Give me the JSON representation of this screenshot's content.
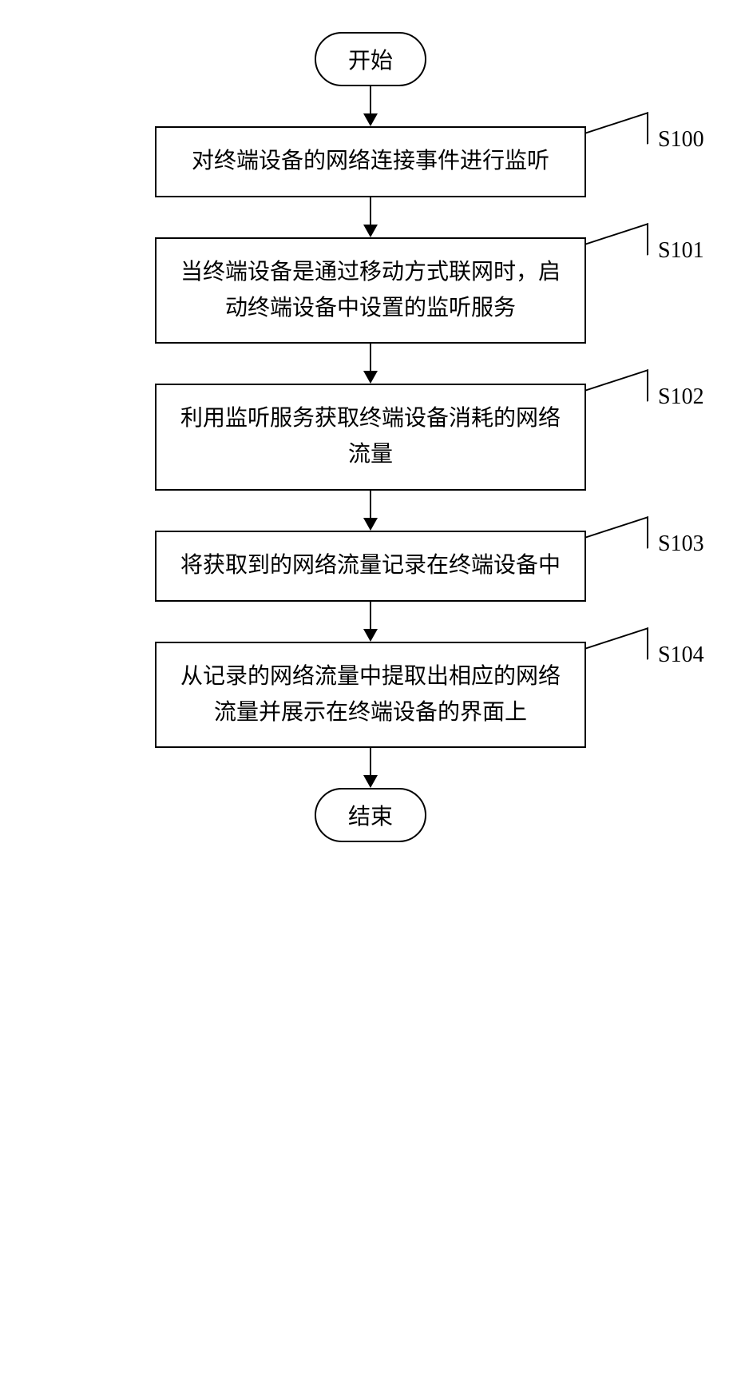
{
  "flowchart": {
    "type": "flowchart",
    "background_color": "#ffffff",
    "border_color": "#000000",
    "border_width": 2,
    "text_color": "#000000",
    "font_family": "SimSun",
    "terminator_fontsize": 28,
    "process_fontsize": 28,
    "label_fontsize": 28,
    "process_width": 540,
    "arrow_gap": 50,
    "start": {
      "label": "开始"
    },
    "end": {
      "label": "结束"
    },
    "steps": [
      {
        "id": "S100",
        "text": "对终端设备的网络连接事件进行监听"
      },
      {
        "id": "S101",
        "text": "当终端设备是通过移动方式联网时，启动终端设备中设置的监听服务"
      },
      {
        "id": "S102",
        "text": "利用监听服务获取终端设备消耗的网络流量"
      },
      {
        "id": "S103",
        "text": "将获取到的网络流量记录在终端设备中"
      },
      {
        "id": "S104",
        "text": "从记录的网络流量中提取出相应的网络流量并展示在终端设备的界面上"
      }
    ]
  }
}
